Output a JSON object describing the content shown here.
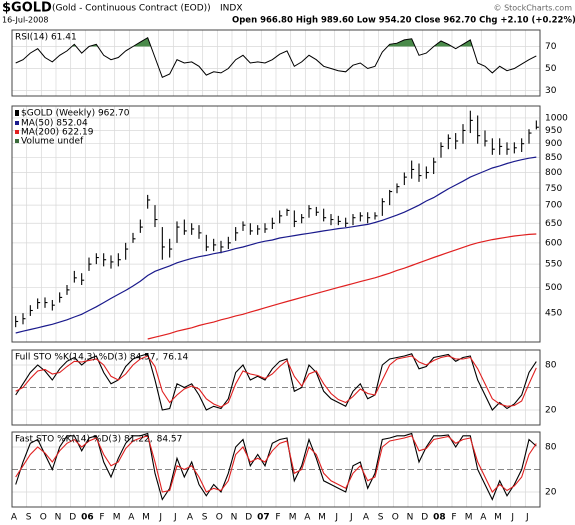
{
  "chart_data": {
    "type": "ohlc",
    "symbol": "$GOLD",
    "title": "(Gold - Continuous Contract (EOD))",
    "exchange": "INDX",
    "date": "16-Jul-2008",
    "quote": "Open 966.80  High 989.60  Low 954.20  Close 962.70  Chg +2.10 (+0.22%)",
    "copyright": "© StockCharts.com",
    "x_labels": [
      "A",
      "S",
      "O",
      "N",
      "D",
      "06",
      "F",
      "M",
      "A",
      "M",
      "J",
      "J",
      "A",
      "S",
      "O",
      "N",
      "D",
      "07",
      "F",
      "M",
      "A",
      "M",
      "J",
      "J",
      "A",
      "S",
      "O",
      "N",
      "D",
      "08",
      "F",
      "M",
      "A",
      "M",
      "J",
      "J"
    ],
    "rsi": {
      "label": "RSI(14) 61.41",
      "color": "#000000",
      "fill": "#4a8a4a",
      "overbought": 70,
      "ylim": [
        25,
        85
      ],
      "yticks": [
        30,
        50,
        70
      ],
      "values": [
        55,
        58,
        64,
        68,
        60,
        56,
        62,
        66,
        72,
        64,
        70,
        72,
        62,
        58,
        60,
        66,
        70,
        74,
        78,
        60,
        42,
        45,
        58,
        55,
        56,
        52,
        44,
        47,
        46,
        50,
        58,
        62,
        55,
        56,
        55,
        58,
        63,
        66,
        52,
        56,
        62,
        58,
        52,
        50,
        48,
        47,
        53,
        55,
        50,
        52,
        65,
        72,
        73,
        76,
        77,
        62,
        64,
        70,
        75,
        72,
        68,
        72,
        76,
        55,
        52,
        46,
        52,
        48,
        50,
        54,
        58,
        61.41
      ]
    },
    "price": {
      "name": "$GOLD (Weekly) 962.70",
      "color": "#000000",
      "log": true,
      "ylim": [
        400,
        1050
      ],
      "yticks": [
        450,
        500,
        550,
        600,
        650,
        700,
        750,
        800,
        850,
        900,
        950,
        1000
      ],
      "close": [
        435,
        440,
        455,
        470,
        470,
        465,
        480,
        495,
        520,
        515,
        550,
        565,
        560,
        555,
        560,
        585,
        610,
        640,
        715,
        660,
        590,
        585,
        640,
        630,
        635,
        625,
        590,
        595,
        590,
        600,
        625,
        645,
        630,
        635,
        635,
        650,
        670,
        685,
        655,
        665,
        690,
        680,
        665,
        660,
        655,
        650,
        665,
        670,
        665,
        670,
        710,
        740,
        755,
        785,
        810,
        790,
        800,
        835,
        890,
        920,
        910,
        950,
        990,
        930,
        910,
        880,
        890,
        880,
        885,
        900,
        940,
        962.7
      ],
      "high": [
        445,
        450,
        465,
        478,
        480,
        475,
        490,
        505,
        535,
        530,
        565,
        575,
        575,
        570,
        575,
        600,
        625,
        660,
        730,
        700,
        640,
        610,
        655,
        660,
        650,
        645,
        620,
        610,
        605,
        615,
        640,
        655,
        650,
        645,
        650,
        665,
        685,
        690,
        685,
        675,
        700,
        695,
        690,
        675,
        670,
        665,
        675,
        680,
        680,
        680,
        720,
        745,
        765,
        800,
        840,
        830,
        820,
        850,
        905,
        935,
        940,
        975,
        1030,
        1010,
        950,
        920,
        920,
        905,
        905,
        920,
        955,
        989.6
      ],
      "low": [
        425,
        430,
        445,
        458,
        460,
        455,
        470,
        485,
        510,
        505,
        535,
        550,
        545,
        540,
        545,
        560,
        600,
        625,
        690,
        640,
        560,
        565,
        600,
        620,
        620,
        610,
        580,
        580,
        575,
        585,
        605,
        630,
        620,
        620,
        625,
        635,
        650,
        670,
        640,
        650,
        665,
        670,
        655,
        645,
        645,
        640,
        645,
        655,
        650,
        660,
        670,
        700,
        735,
        760,
        780,
        770,
        780,
        795,
        850,
        880,
        880,
        900,
        940,
        900,
        890,
        860,
        860,
        860,
        865,
        870,
        900,
        954.2
      ],
      "series": [
        {
          "name": "MA(50) 852.04",
          "color": "#1a1a8c",
          "values": [
            415,
            418,
            421,
            424,
            427,
            430,
            434,
            438,
            443,
            448,
            455,
            462,
            470,
            478,
            486,
            494,
            503,
            513,
            525,
            534,
            540,
            546,
            553,
            558,
            563,
            567,
            570,
            574,
            577,
            581,
            586,
            590,
            595,
            600,
            604,
            607,
            612,
            615,
            618,
            621,
            624,
            627,
            630,
            633,
            636,
            638,
            641,
            644,
            647,
            652,
            658,
            665,
            672,
            680,
            690,
            700,
            712,
            722,
            735,
            748,
            760,
            772,
            785,
            795,
            805,
            815,
            822,
            830,
            837,
            843,
            848,
            852.04
          ]
        },
        {
          "name": "MA(200) 622.19",
          "color": "#e02020",
          "values": [
            null,
            null,
            null,
            null,
            null,
            null,
            null,
            null,
            null,
            null,
            null,
            null,
            null,
            null,
            null,
            null,
            null,
            null,
            405,
            408,
            411,
            414,
            418,
            421,
            424,
            428,
            431,
            434,
            438,
            441,
            445,
            448,
            452,
            456,
            460,
            464,
            468,
            472,
            476,
            480,
            484,
            488,
            492,
            496,
            500,
            504,
            508,
            512,
            516,
            520,
            525,
            530,
            536,
            541,
            547,
            553,
            559,
            565,
            571,
            577,
            583,
            589,
            595,
            600,
            604,
            608,
            611,
            614,
            617,
            619,
            621,
            622.19
          ]
        }
      ],
      "volume_label": "Volume undef"
    },
    "full_sto": {
      "label": [
        {
          "text": "Full STO %K(14,3) %D(3) 84.57,",
          "color": "#000000"
        },
        {
          "text": "76.14",
          "color": "#e02020"
        }
      ],
      "ylim": [
        0,
        100
      ],
      "yticks": [
        20,
        80
      ],
      "midline": 50,
      "series": [
        {
          "color": "#000000",
          "values": [
            40,
            55,
            70,
            80,
            72,
            60,
            75,
            85,
            90,
            80,
            88,
            92,
            70,
            55,
            60,
            78,
            88,
            92,
            95,
            60,
            20,
            22,
            55,
            50,
            55,
            40,
            20,
            25,
            22,
            35,
            70,
            80,
            60,
            65,
            60,
            75,
            85,
            88,
            45,
            50,
            80,
            70,
            45,
            35,
            30,
            25,
            45,
            55,
            35,
            40,
            80,
            88,
            90,
            92,
            95,
            75,
            78,
            90,
            92,
            94,
            85,
            90,
            92,
            60,
            40,
            20,
            30,
            22,
            28,
            40,
            70,
            84.57
          ]
        },
        {
          "color": "#e02020",
          "values": [
            45,
            50,
            62,
            72,
            74,
            68,
            70,
            78,
            85,
            84,
            86,
            88,
            80,
            65,
            60,
            68,
            80,
            88,
            92,
            78,
            45,
            30,
            40,
            48,
            52,
            48,
            35,
            28,
            24,
            30,
            55,
            72,
            68,
            66,
            62,
            68,
            78,
            86,
            65,
            52,
            68,
            72,
            55,
            42,
            34,
            30,
            38,
            48,
            42,
            40,
            60,
            80,
            88,
            90,
            92,
            84,
            80,
            86,
            90,
            92,
            88,
            88,
            90,
            75,
            55,
            35,
            28,
            25,
            26,
            32,
            55,
            76.14
          ]
        }
      ]
    },
    "fast_sto": {
      "label": [
        {
          "text": "Fast STO %K(14) %D(3) 81.22,",
          "color": "#000000"
        },
        {
          "text": "84.57",
          "color": "#e02020"
        }
      ],
      "ylim": [
        0,
        100
      ],
      "yticks": [
        20,
        80
      ],
      "midline": 50,
      "series": [
        {
          "color": "#000000",
          "values": [
            30,
            60,
            85,
            90,
            70,
            50,
            80,
            95,
            95,
            75,
            92,
            95,
            60,
            40,
            65,
            85,
            95,
            95,
            98,
            45,
            10,
            25,
            65,
            40,
            60,
            30,
            15,
            30,
            20,
            45,
            80,
            90,
            55,
            70,
            55,
            85,
            90,
            92,
            35,
            55,
            90,
            65,
            35,
            30,
            25,
            20,
            55,
            60,
            25,
            45,
            90,
            92,
            95,
            95,
            98,
            60,
            80,
            95,
            95,
            96,
            80,
            95,
            95,
            50,
            30,
            10,
            35,
            15,
            30,
            50,
            90,
            81.22
          ]
        },
        {
          "color": "#e02020",
          "values": [
            40,
            55,
            70,
            80,
            72,
            60,
            75,
            85,
            90,
            80,
            88,
            92,
            70,
            55,
            60,
            78,
            88,
            92,
            95,
            60,
            20,
            22,
            55,
            50,
            55,
            40,
            20,
            25,
            22,
            35,
            70,
            80,
            60,
            65,
            60,
            75,
            85,
            88,
            45,
            50,
            80,
            70,
            45,
            35,
            30,
            25,
            45,
            55,
            35,
            40,
            80,
            88,
            90,
            92,
            95,
            75,
            78,
            90,
            92,
            94,
            85,
            90,
            92,
            60,
            40,
            20,
            30,
            22,
            28,
            40,
            70,
            84.57
          ]
        }
      ]
    }
  }
}
